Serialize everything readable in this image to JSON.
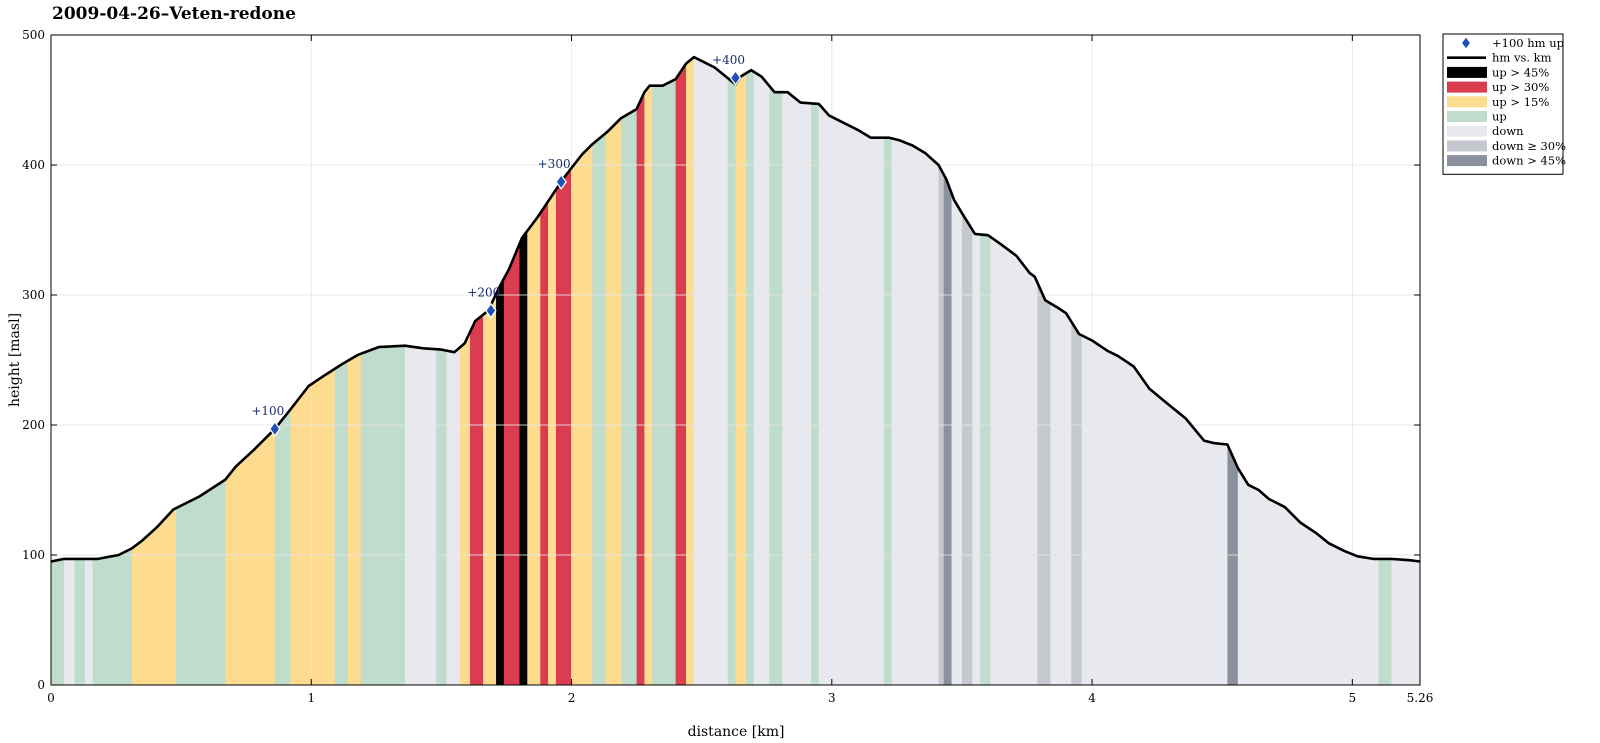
{
  "chart_data": {
    "type": "area",
    "title": "2009-04-26–Veten-redone",
    "xlabel": "distance [km]",
    "ylabel": "height [masl]",
    "xlim": [
      0,
      5.26
    ],
    "ylim": [
      0,
      500
    ],
    "xticks": [
      0,
      1,
      2,
      3,
      4,
      5,
      5.26
    ],
    "xtick_labels": [
      "0",
      "1",
      "2",
      "3",
      "4",
      "5",
      "5.26"
    ],
    "yticks": [
      0,
      100,
      200,
      300,
      400,
      500
    ],
    "ytick_labels": [
      "0",
      "100",
      "200",
      "300",
      "400",
      "500"
    ],
    "grid": true,
    "legend_position": "outside-top-right",
    "categories": {
      "up45": {
        "label": "up > 45%",
        "color": "#000000"
      },
      "up30": {
        "label": "up > 30%",
        "color": "#db3d50"
      },
      "up15": {
        "label": "up > 15%",
        "color": "#fddc8f"
      },
      "up": {
        "label": "up",
        "color": "#c0dccd"
      },
      "down": {
        "label": "down",
        "color": "#e8e9ee"
      },
      "down30": {
        "label": "down ≥ 30%",
        "color": "#c6c8d0"
      },
      "down45": {
        "label": "down > 45%",
        "color": "#8b909d"
      }
    },
    "legend": [
      {
        "key": "marker",
        "label": "+100 hm up"
      },
      {
        "key": "line",
        "label": "hm vs. km"
      },
      {
        "key": "up45",
        "label": "up > 45%"
      },
      {
        "key": "up30",
        "label": "up > 30%"
      },
      {
        "key": "up15",
        "label": "up > 15%"
      },
      {
        "key": "up",
        "label": "up"
      },
      {
        "key": "down",
        "label": "down"
      },
      {
        "key": "down30",
        "label": "down ≥ 30%"
      },
      {
        "key": "down45",
        "label": "down > 45%"
      }
    ],
    "profile": [
      [
        0,
        95
      ],
      [
        0.05,
        97
      ],
      [
        0.12,
        97
      ],
      [
        0.18,
        97
      ],
      [
        0.26,
        100
      ],
      [
        0.31,
        105
      ],
      [
        0.35,
        111
      ],
      [
        0.41,
        122
      ],
      [
        0.47,
        135
      ],
      [
        0.57,
        145
      ],
      [
        0.67,
        158
      ],
      [
        0.71,
        168
      ],
      [
        0.78,
        181
      ],
      [
        0.86,
        197
      ],
      [
        0.92,
        212
      ],
      [
        0.99,
        230
      ],
      [
        1.05,
        238
      ],
      [
        1.12,
        247
      ],
      [
        1.18,
        254
      ],
      [
        1.26,
        260
      ],
      [
        1.36,
        261
      ],
      [
        1.43,
        259
      ],
      [
        1.5,
        258
      ],
      [
        1.55,
        256
      ],
      [
        1.59,
        263
      ],
      [
        1.63,
        280
      ],
      [
        1.68,
        288
      ],
      [
        1.72,
        305
      ],
      [
        1.76,
        320
      ],
      [
        1.81,
        344
      ],
      [
        1.87,
        360
      ],
      [
        1.93,
        378
      ],
      [
        1.97,
        390
      ],
      [
        2.04,
        408
      ],
      [
        2.08,
        416
      ],
      [
        2.14,
        426
      ],
      [
        2.19,
        436
      ],
      [
        2.25,
        443
      ],
      [
        2.28,
        456
      ],
      [
        2.3,
        461
      ],
      [
        2.35,
        461
      ],
      [
        2.4,
        466
      ],
      [
        2.44,
        478
      ],
      [
        2.47,
        483
      ],
      [
        2.55,
        475
      ],
      [
        2.63,
        462
      ],
      [
        2.65,
        468
      ],
      [
        2.69,
        473
      ],
      [
        2.73,
        468
      ],
      [
        2.78,
        456
      ],
      [
        2.83,
        456
      ],
      [
        2.88,
        448
      ],
      [
        2.95,
        447
      ],
      [
        2.99,
        438
      ],
      [
        3.05,
        432
      ],
      [
        3.1,
        427
      ],
      [
        3.15,
        421
      ],
      [
        3.22,
        421
      ],
      [
        3.26,
        419
      ],
      [
        3.31,
        415
      ],
      [
        3.36,
        409
      ],
      [
        3.41,
        400
      ],
      [
        3.44,
        389
      ],
      [
        3.47,
        373
      ],
      [
        3.5,
        363
      ],
      [
        3.55,
        347
      ],
      [
        3.6,
        346
      ],
      [
        3.65,
        339
      ],
      [
        3.71,
        330
      ],
      [
        3.76,
        317
      ],
      [
        3.78,
        314
      ],
      [
        3.82,
        296
      ],
      [
        3.87,
        290
      ],
      [
        3.9,
        286
      ],
      [
        3.95,
        270
      ],
      [
        4.0,
        265
      ],
      [
        4.06,
        257
      ],
      [
        4.1,
        253
      ],
      [
        4.16,
        245
      ],
      [
        4.22,
        228
      ],
      [
        4.28,
        218
      ],
      [
        4.36,
        205
      ],
      [
        4.43,
        188
      ],
      [
        4.47,
        186
      ],
      [
        4.52,
        185
      ],
      [
        4.56,
        167
      ],
      [
        4.6,
        154
      ],
      [
        4.64,
        150
      ],
      [
        4.68,
        143
      ],
      [
        4.74,
        137
      ],
      [
        4.8,
        125
      ],
      [
        4.86,
        117
      ],
      [
        4.91,
        109
      ],
      [
        4.97,
        103
      ],
      [
        5.02,
        99
      ],
      [
        5.08,
        97
      ],
      [
        5.15,
        97
      ],
      [
        5.22,
        96
      ],
      [
        5.26,
        95
      ]
    ],
    "bands": [
      [
        0,
        0.05,
        "up"
      ],
      [
        0.05,
        0.09,
        "down"
      ],
      [
        0.09,
        0.13,
        "up"
      ],
      [
        0.13,
        0.16,
        "down"
      ],
      [
        0.16,
        0.31,
        "up"
      ],
      [
        0.31,
        0.48,
        "up15"
      ],
      [
        0.48,
        0.67,
        "up"
      ],
      [
        0.67,
        0.86,
        "up15"
      ],
      [
        0.86,
        0.92,
        "up"
      ],
      [
        0.92,
        1.09,
        "up15"
      ],
      [
        1.09,
        1.14,
        "up"
      ],
      [
        1.14,
        1.19,
        "up15"
      ],
      [
        1.19,
        1.36,
        "up"
      ],
      [
        1.36,
        1.48,
        "down"
      ],
      [
        1.48,
        1.52,
        "up"
      ],
      [
        1.52,
        1.57,
        "down"
      ],
      [
        1.57,
        1.61,
        "up15"
      ],
      [
        1.61,
        1.66,
        "up30"
      ],
      [
        1.66,
        1.71,
        "up15"
      ],
      [
        1.71,
        1.74,
        "up45"
      ],
      [
        1.74,
        1.8,
        "up30"
      ],
      [
        1.8,
        1.83,
        "up45"
      ],
      [
        1.83,
        1.88,
        "up15"
      ],
      [
        1.88,
        1.91,
        "up30"
      ],
      [
        1.91,
        1.94,
        "up15"
      ],
      [
        1.94,
        2.0,
        "up30"
      ],
      [
        2.0,
        2.08,
        "up15"
      ],
      [
        2.08,
        2.13,
        "up"
      ],
      [
        2.13,
        2.19,
        "up15"
      ],
      [
        2.19,
        2.25,
        "up"
      ],
      [
        2.25,
        2.28,
        "up30"
      ],
      [
        2.28,
        2.31,
        "up15"
      ],
      [
        2.31,
        2.4,
        "up"
      ],
      [
        2.4,
        2.44,
        "up30"
      ],
      [
        2.44,
        2.47,
        "up15"
      ],
      [
        2.47,
        2.6,
        "down"
      ],
      [
        2.6,
        2.63,
        "up"
      ],
      [
        2.63,
        2.67,
        "up15"
      ],
      [
        2.67,
        2.7,
        "up"
      ],
      [
        2.7,
        2.76,
        "down"
      ],
      [
        2.76,
        2.81,
        "up"
      ],
      [
        2.81,
        2.92,
        "down"
      ],
      [
        2.92,
        2.95,
        "up"
      ],
      [
        2.95,
        3.2,
        "down"
      ],
      [
        3.2,
        3.23,
        "up"
      ],
      [
        3.23,
        3.41,
        "down"
      ],
      [
        3.41,
        3.43,
        "down30"
      ],
      [
        3.43,
        3.46,
        "down45"
      ],
      [
        3.46,
        3.5,
        "down"
      ],
      [
        3.5,
        3.54,
        "down30"
      ],
      [
        3.54,
        3.57,
        "down"
      ],
      [
        3.57,
        3.61,
        "up"
      ],
      [
        3.61,
        3.79,
        "down"
      ],
      [
        3.79,
        3.84,
        "down30"
      ],
      [
        3.84,
        3.92,
        "down"
      ],
      [
        3.92,
        3.96,
        "down30"
      ],
      [
        3.96,
        4.52,
        "down"
      ],
      [
        4.52,
        4.56,
        "down45"
      ],
      [
        4.56,
        5.1,
        "down"
      ],
      [
        5.1,
        5.15,
        "up"
      ],
      [
        5.15,
        5.26,
        "down"
      ]
    ],
    "markers": [
      {
        "x": 0.86,
        "y": 197,
        "label": "+100"
      },
      {
        "x": 1.69,
        "y": 288,
        "label": "+200"
      },
      {
        "x": 1.96,
        "y": 387,
        "label": "+300"
      },
      {
        "x": 2.63,
        "y": 467,
        "label": "+400"
      }
    ],
    "colors": {
      "line": "#000000",
      "marker": "#1f4fb5",
      "grid": "#e6e6e6"
    }
  }
}
